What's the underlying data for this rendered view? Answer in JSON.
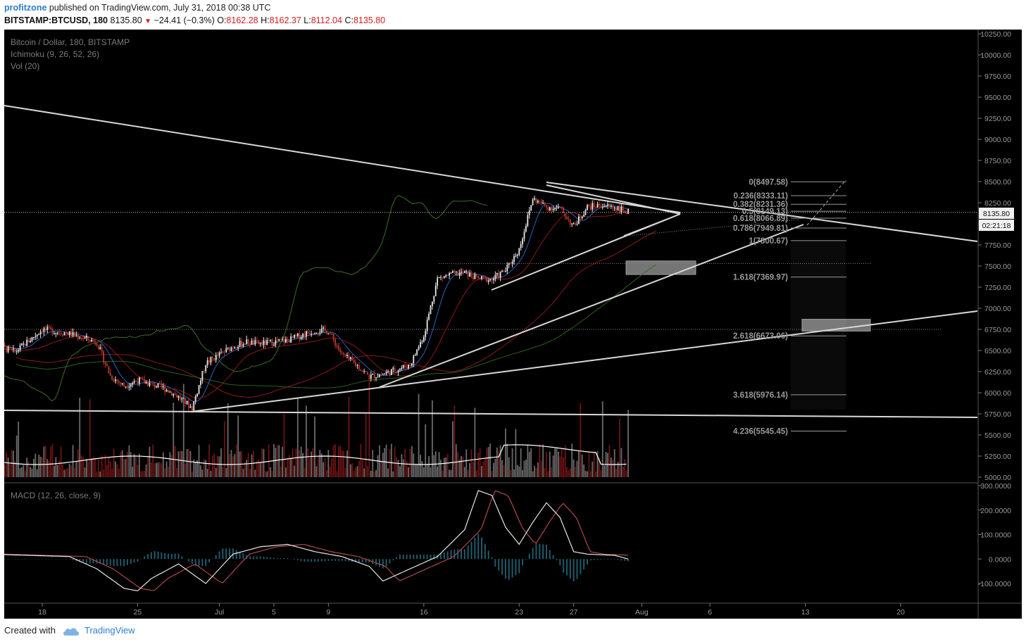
{
  "header": {
    "author": "profitzone",
    "published_text": "published on TradingView.com, July 31, 2018 00:38 UTC",
    "symbol": "BITSTAMP:BTCUSD, 180",
    "last": "8135.80",
    "change": "−24.41 (−0.3%)",
    "open_label": "O:",
    "open": "8162.28",
    "high_label": "H:",
    "high": "8162.37",
    "low_label": "L:",
    "low": "8112.04",
    "close_label": "C:",
    "close": "8135.80"
  },
  "legend": {
    "title": "Bitcoin / Dollar, 180, BITSTAMP",
    "ichimoku": "Ichimoku (9, 26, 52, 26)",
    "volume": "Vol (20)",
    "macd": "MACD (12, 26, close, 9)"
  },
  "price_badge": "8135.80",
  "timer_badge": "02:21:18",
  "footer": {
    "created_with": "Created with",
    "brand": "TradingView"
  },
  "colors": {
    "background": "#000000",
    "up": "#e8e8e8",
    "down": "#c0392b",
    "trendline": "#d8d8d8",
    "fib": "#9a9a9a",
    "macd_hist": "#1f5a6b"
  },
  "chart_data": {
    "type": "candlestick",
    "price_axis": {
      "min": 5000,
      "max": 10250,
      "ticks": [
        "10250.00",
        "10000.00",
        "9750.00",
        "9500.00",
        "9250.00",
        "9000.00",
        "8750.00",
        "8500.00",
        "8250.00",
        "8000.00",
        "7750.00",
        "7500.00",
        "7250.00",
        "7000.00",
        "6750.00",
        "6500.00",
        "6250.00",
        "6000.00",
        "5750.00",
        "5500.00",
        "5250.00",
        "5000.00"
      ]
    },
    "macd_axis": {
      "min": -150,
      "max": 300,
      "ticks": [
        "300.0000",
        "200.0000",
        "100.0000",
        "0.0000",
        "-100.0000"
      ]
    },
    "x_ticks": [
      "18",
      "25",
      "Jul",
      "5",
      "9",
      "16",
      "23",
      "27",
      "Aug",
      "6",
      "13",
      "20"
    ],
    "last_price": 8135.8,
    "fibonacci": [
      {
        "label": "0(8497.58)",
        "value": 8497.58
      },
      {
        "label": "0.236(8333.11)",
        "value": 8333.11
      },
      {
        "label": "0.382(8231.36)",
        "value": 8231.36
      },
      {
        "label": "0.5(8149.13)",
        "value": 8149.13
      },
      {
        "label": "0.618(8066.89)",
        "value": 8066.89
      },
      {
        "label": "0.786(7949.81)",
        "value": 7949.81
      },
      {
        "label": "1(7800.67)",
        "value": 7800.67
      },
      {
        "label": "1.618(7369.97)",
        "value": 7369.97
      },
      {
        "label": "2.618(6673.06)",
        "value": 6673.06
      },
      {
        "label": "3.618(5976.14)",
        "value": 5976.14
      },
      {
        "label": "4.236(5545.45)",
        "value": 5545.45
      }
    ],
    "close_path": [
      [
        "Jun 14",
        6600
      ],
      [
        "Jun 16",
        6480
      ],
      [
        "Jun 18",
        6750
      ],
      [
        "Jun 20",
        6700
      ],
      [
        "Jun 22",
        6600
      ],
      [
        "Jun 23",
        6200
      ],
      [
        "Jun 24",
        6080
      ],
      [
        "Jun 25",
        6150
      ],
      [
        "Jun 27",
        6050
      ],
      [
        "Jun 28",
        5950
      ],
      [
        "Jun 29",
        5820
      ],
      [
        "Jun 30",
        6350
      ],
      [
        "Jul 2",
        6550
      ],
      [
        "Jul 3",
        6600
      ],
      [
        "Jul 4",
        6580
      ],
      [
        "Jul 6",
        6620
      ],
      [
        "Jul 8",
        6740
      ],
      [
        "Jul 9",
        6730
      ],
      [
        "Jul 10",
        6450
      ],
      [
        "Jul 11",
        6340
      ],
      [
        "Jul 12",
        6190
      ],
      [
        "Jul 13",
        6220
      ],
      [
        "Jul 15",
        6330
      ],
      [
        "Jul 16",
        6680
      ],
      [
        "Jul 17",
        7350
      ],
      [
        "Jul 18",
        7400
      ],
      [
        "Jul 19",
        7420
      ],
      [
        "Jul 20",
        7350
      ],
      [
        "Jul 21",
        7340
      ],
      [
        "Jul 22",
        7450
      ],
      [
        "Jul 23",
        7700
      ],
      [
        "Jul 24",
        8300
      ],
      [
        "Jul 25",
        8200
      ],
      [
        "Jul 26",
        8180
      ],
      [
        "Jul 27",
        7970
      ],
      [
        "Jul 28",
        8200
      ],
      [
        "Jul 29",
        8220
      ],
      [
        "Jul 30",
        8200
      ],
      [
        "Jul 31",
        8135.8
      ]
    ],
    "zones": [
      {
        "from_price": 7400,
        "to_price": 7560
      },
      {
        "from_price": 6730,
        "to_price": 6870
      }
    ]
  }
}
